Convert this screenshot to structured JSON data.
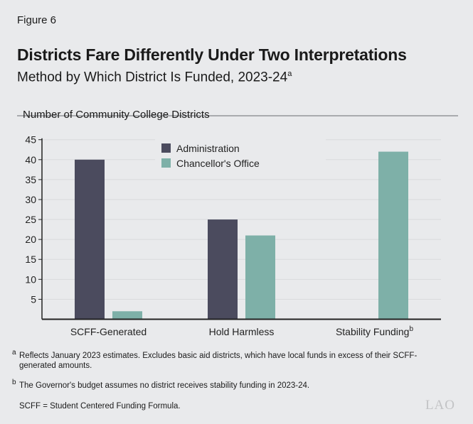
{
  "figure_label": "Figure 6",
  "title": "Districts Fare Differently Under Two Interpretations",
  "subtitle": "Method by Which District Is Funded, 2023-24",
  "subtitle_note": "a",
  "chart_data": {
    "type": "bar",
    "ylabel": "Number of Community College Districts",
    "categories": [
      "SCFF-Generated",
      "Hold Harmless",
      "Stability Funding"
    ],
    "category_notes": [
      "",
      "",
      "b"
    ],
    "series": [
      {
        "name": "Administration",
        "color": "#4b4b5e",
        "values": [
          40,
          25,
          0
        ]
      },
      {
        "name": "Chancellor's Office",
        "color": "#7eb0a8",
        "values": [
          2,
          21,
          42
        ]
      }
    ],
    "ylim": [
      0,
      45
    ],
    "yticks": [
      5,
      10,
      15,
      20,
      25,
      30,
      35,
      40,
      45
    ],
    "grid": true,
    "legend": "top-center"
  },
  "footnotes": [
    {
      "mark": "a",
      "text": "Reflects January 2023 estimates. Excludes basic aid districts, which have local funds in excess of their SCFF-generated amounts."
    },
    {
      "mark": "b",
      "text": "The Governor's budget assumes no district receives stability funding in 2023-24."
    }
  ],
  "abbreviation": "SCFF = Student Centered Funding Formula.",
  "logo": "LAO"
}
